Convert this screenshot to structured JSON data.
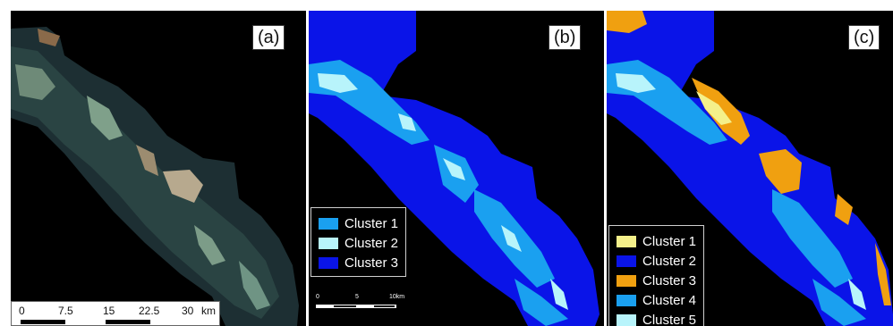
{
  "panels": [
    {
      "label": "(a)",
      "scalebar": {
        "ticks": [
          "0",
          "7.5",
          "15",
          "22.5",
          "30"
        ],
        "unit": "km"
      }
    },
    {
      "label": "(b)",
      "legend": [
        {
          "name": "Cluster 1",
          "color": "#1aa0f0"
        },
        {
          "name": "Cluster 2",
          "color": "#b8f4fb"
        },
        {
          "name": "Cluster 3",
          "color": "#0a14e8"
        }
      ],
      "scalebar": {
        "ticks": [
          "0",
          "5",
          "10km"
        ]
      }
    },
    {
      "label": "(c)",
      "legend": [
        {
          "name": "Cluster 1",
          "color": "#f4f08a"
        },
        {
          "name": "Cluster 2",
          "color": "#0a14e8"
        },
        {
          "name": "Cluster 3",
          "color": "#f0a010"
        },
        {
          "name": "Cluster 4",
          "color": "#1aa0f0"
        },
        {
          "name": "Cluster 5",
          "color": "#b8f4fb"
        }
      ]
    }
  ]
}
